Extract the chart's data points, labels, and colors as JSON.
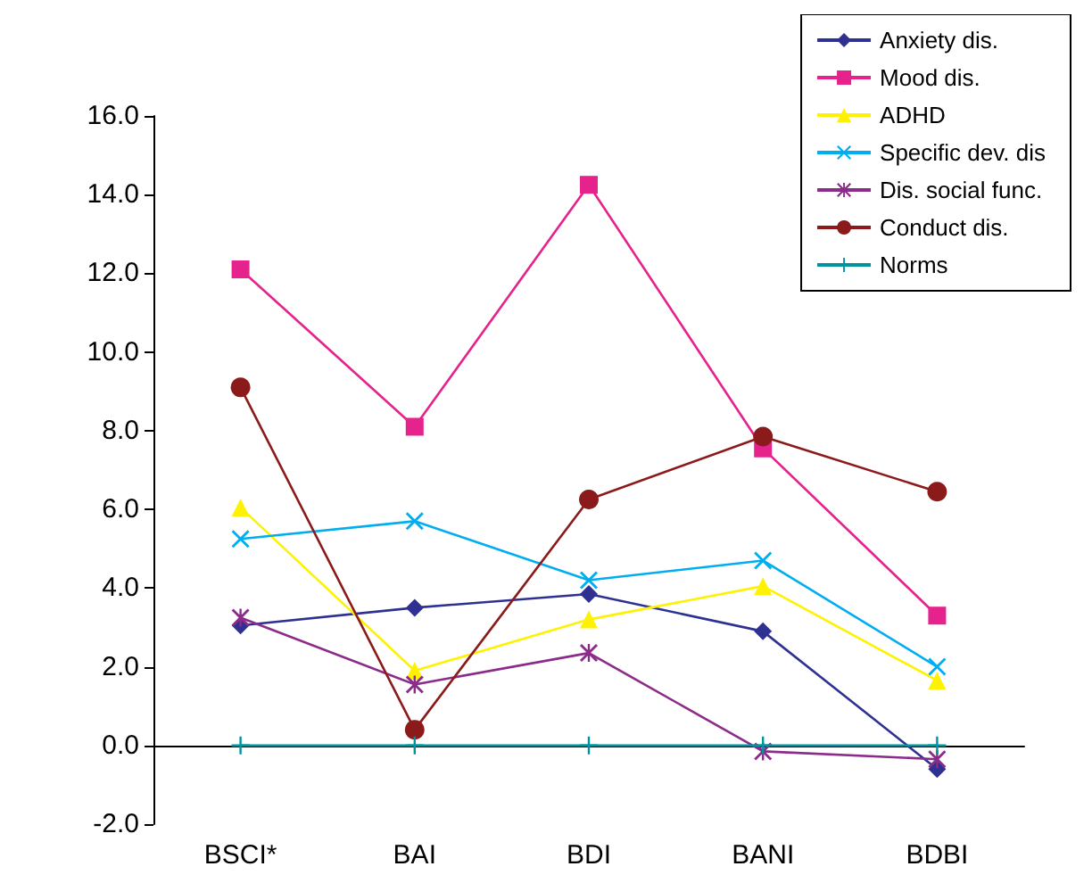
{
  "chart_data": {
    "type": "line",
    "categories": [
      "BSCI*",
      "BAI",
      "BDI",
      "BANI",
      "BDBI"
    ],
    "series": [
      {
        "name": "Anxiety dis.",
        "color": "#2e3192",
        "marker": "diamond",
        "values": [
          3.05,
          3.5,
          3.85,
          2.9,
          -0.6
        ]
      },
      {
        "name": "Mood dis.",
        "color": "#e6228c",
        "marker": "square",
        "values": [
          12.1,
          8.1,
          14.25,
          7.55,
          3.3
        ]
      },
      {
        "name": "ADHD",
        "color": "#fff200",
        "marker": "triangle",
        "values": [
          6.05,
          1.9,
          3.2,
          4.05,
          1.65
        ]
      },
      {
        "name": "Specific dev. dis",
        "color": "#00aeef",
        "marker": "cross",
        "values": [
          5.25,
          5.7,
          4.2,
          4.7,
          2.0
        ]
      },
      {
        "name": "Dis. social func.",
        "color": "#8b2c8b",
        "marker": "star",
        "values": [
          3.25,
          1.55,
          2.35,
          -0.15,
          -0.35
        ]
      },
      {
        "name": "Conduct dis.",
        "color": "#8b1a1a",
        "marker": "circle",
        "values": [
          9.1,
          0.4,
          6.25,
          7.85,
          6.45
        ]
      },
      {
        "name": "Norms",
        "color": "#0093a0",
        "marker": "plus",
        "values": [
          0,
          0,
          0,
          0,
          0
        ]
      }
    ],
    "ylim": [
      -2,
      16
    ],
    "yticks": [
      {
        "value": -2,
        "label": "-2.0"
      },
      {
        "value": 0,
        "label": "0.0"
      },
      {
        "value": 2,
        "label": "2.0"
      },
      {
        "value": 4,
        "label": "4.0"
      },
      {
        "value": 6,
        "label": "6.0"
      },
      {
        "value": 8,
        "label": "8.0"
      },
      {
        "value": 10,
        "label": "10.0"
      },
      {
        "value": 12,
        "label": "12.0"
      },
      {
        "value": 14,
        "label": "14.0"
      },
      {
        "value": 16,
        "label": "16.0"
      }
    ],
    "legend": "top right"
  }
}
